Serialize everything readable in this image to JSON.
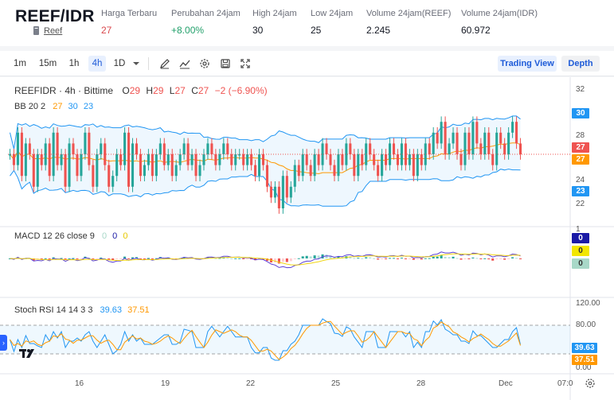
{
  "header": {
    "pair": "REEF/IDR",
    "coin_name": "Reef",
    "coin_icon": "coin-icon",
    "stats": [
      {
        "key": "last",
        "label": "Harga Terbaru",
        "value": "27",
        "tone": "red"
      },
      {
        "key": "change",
        "label": "Perubahan 24jam",
        "value": "+8.00%",
        "tone": "green"
      },
      {
        "key": "high",
        "label": "High 24jam",
        "value": "30",
        "tone": "plain"
      },
      {
        "key": "low",
        "label": "Low 24jam",
        "value": "25",
        "tone": "plain"
      },
      {
        "key": "vol_reef",
        "label": "Volume 24jam(REEF)",
        "value": "2.245",
        "tone": "plain"
      },
      {
        "key": "vol_idr",
        "label": "Volume 24jam(IDR)",
        "value": "60.972",
        "tone": "plain"
      }
    ]
  },
  "toolbar": {
    "timeframes": [
      "1m",
      "15m",
      "1h",
      "4h",
      "1D"
    ],
    "active_timeframe": "4h",
    "tools": [
      "draw-pencil-icon",
      "indicators-icon",
      "settings-gear-icon",
      "save-icon",
      "fullscreen-icon"
    ],
    "trading_view_label": "Trading View",
    "depth_label": "Depth"
  },
  "chart": {
    "symbol_line": "REEFIDR · 4h · Bittime",
    "ohlc": {
      "O": "29",
      "H": "29",
      "L": "27",
      "C": "27",
      "change": "−2 (−6.90%)"
    },
    "bb_legend": {
      "name": "BB 20 2",
      "basis": "27",
      "upper": "30",
      "lower": "23"
    },
    "macd_legend": {
      "name": "MACD 12 26 close 9",
      "hist": "0",
      "macd": "0",
      "signal": "0"
    },
    "stoch_legend": {
      "name": "Stoch RSI 14 14 3 3",
      "k": "39.63",
      "d": "37.51"
    },
    "price_axis_ticks": [
      "32",
      "28",
      "24",
      "22"
    ],
    "price_badges": [
      {
        "value": "30",
        "color": "#2196f3"
      },
      {
        "value": "27",
        "color": "#ef5350"
      },
      {
        "value": "27",
        "color": "#ff9800"
      },
      {
        "value": "23",
        "color": "#2196f3"
      }
    ],
    "macd_axis": {
      "tick": "1",
      "badges": [
        {
          "value": "0",
          "color": "#1a1aa6"
        },
        {
          "value": "0",
          "color": "#f2e600"
        },
        {
          "value": "0",
          "color": "#a8d8c8"
        }
      ]
    },
    "stoch_axis": {
      "ticks": [
        "120.00",
        "80.00",
        "0.00"
      ],
      "badges": [
        {
          "value": "39.63",
          "color": "#2196f3"
        },
        {
          "value": "37.51",
          "color": "#ff9800"
        }
      ]
    },
    "time_axis": [
      "16",
      "19",
      "22",
      "25",
      "28",
      "Dec",
      "07:0"
    ],
    "colors": {
      "up": "#26a69a",
      "down": "#ef5350",
      "bb": "#2196f3",
      "basis": "#ff9800",
      "macd": "#5b3fd6",
      "signal": "#f2d50f",
      "stoch_k": "#2196f3",
      "stoch_d": "#ff9800"
    }
  },
  "chart_data": {
    "type": "candlestick",
    "series_closes": [
      27,
      26,
      29,
      25,
      28,
      27,
      24,
      27,
      26,
      28,
      25,
      29,
      26,
      27,
      24,
      28,
      27,
      25,
      27,
      29,
      26,
      24,
      27,
      28,
      26,
      24,
      25,
      27,
      26,
      29,
      24,
      28,
      27,
      25,
      26,
      27,
      25,
      27,
      28,
      26,
      27,
      25,
      26,
      27,
      28,
      26,
      27,
      25,
      26,
      27,
      28,
      27,
      26,
      27,
      28,
      27,
      26,
      27,
      27,
      26,
      27,
      26,
      25,
      27,
      26,
      24,
      23,
      24,
      22,
      25,
      23,
      24,
      26,
      25,
      27,
      26,
      25,
      27,
      26,
      28,
      27,
      26,
      25,
      27,
      26,
      28,
      27,
      25,
      27,
      26,
      28,
      27,
      26,
      25,
      27,
      26,
      28,
      27,
      26,
      28,
      26,
      27,
      25,
      27,
      26,
      28,
      27,
      29,
      28,
      30,
      27,
      28,
      29,
      27,
      26,
      29,
      27,
      30,
      28,
      27,
      29,
      27,
      26,
      29,
      28,
      27,
      29,
      30,
      28,
      27
    ],
    "y_axis_ticks": [
      22,
      24,
      28,
      32
    ],
    "last": 27,
    "bb_upper_last": 30,
    "bb_lower_last": 23,
    "stoch_rsi_k_last": 39.63,
    "stoch_rsi_d_last": 37.51
  }
}
